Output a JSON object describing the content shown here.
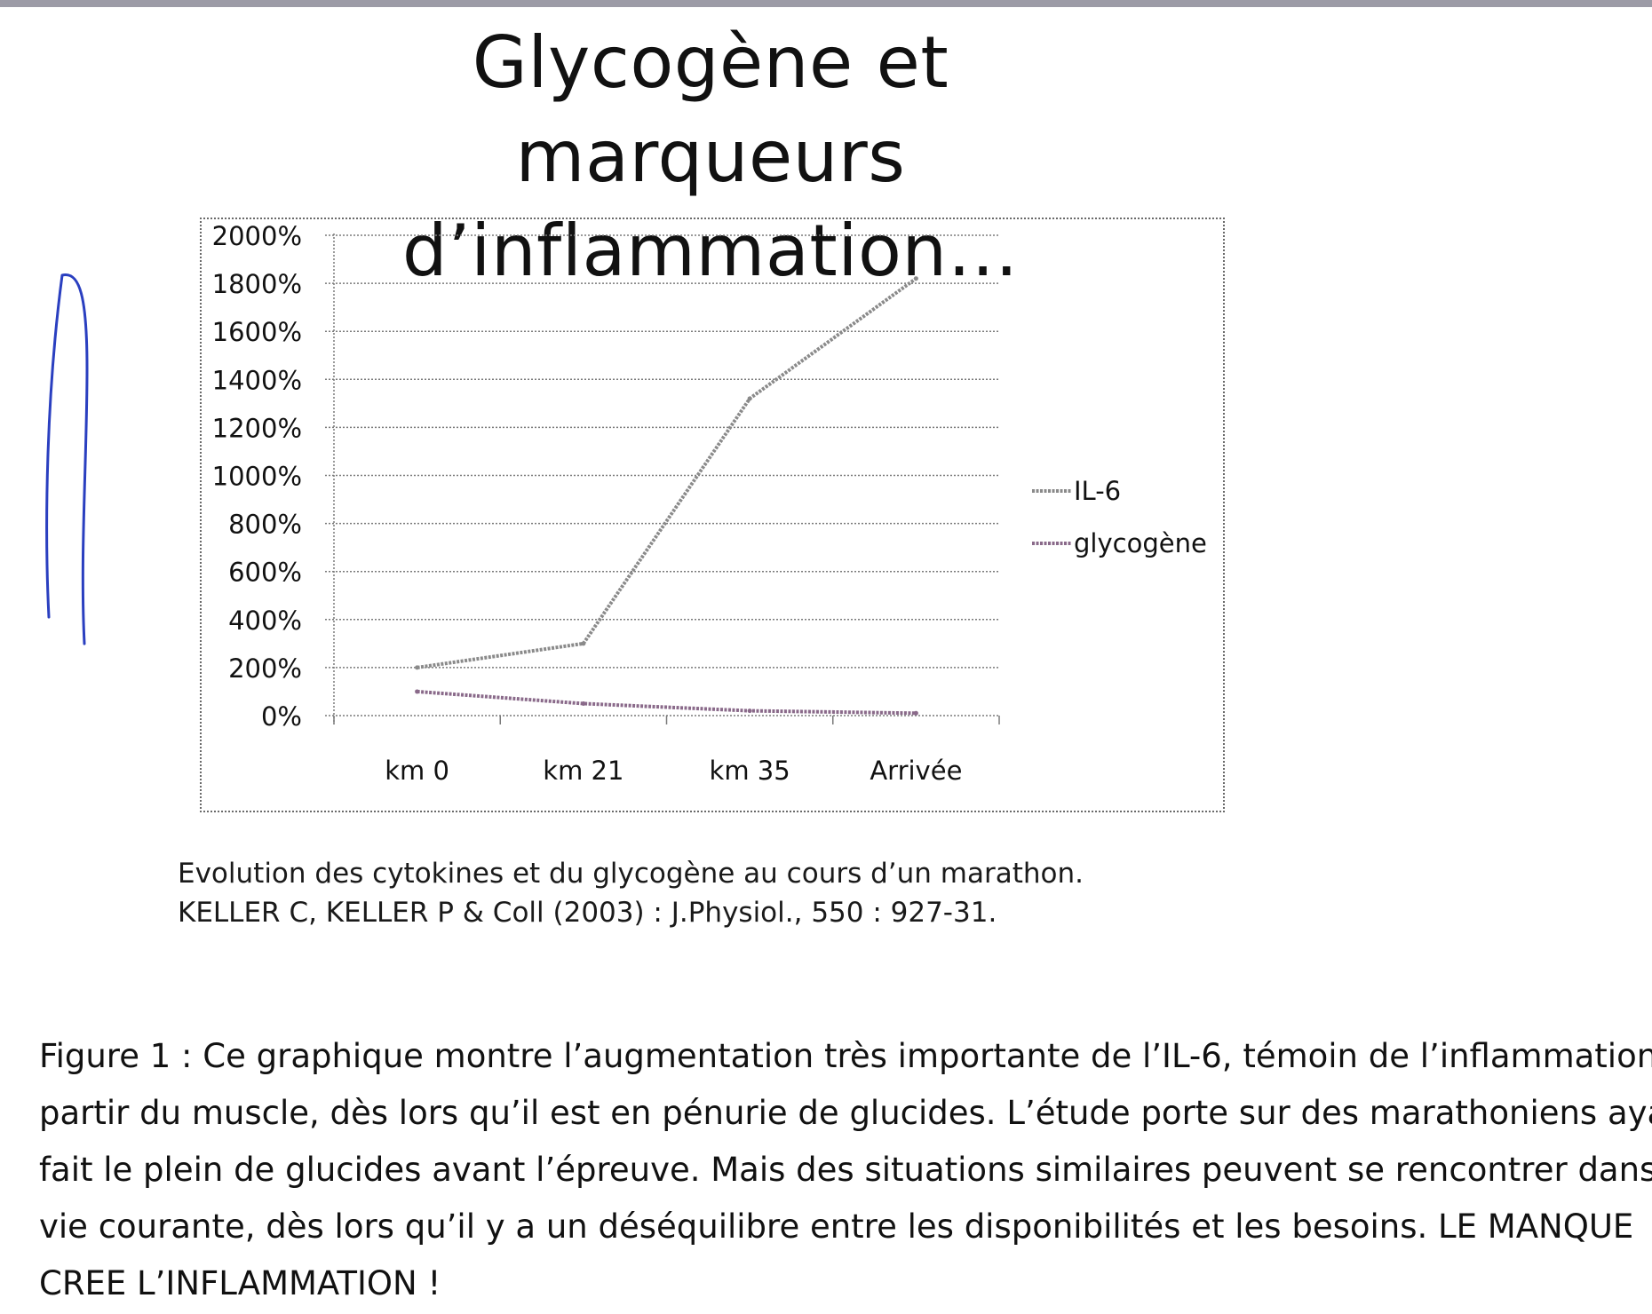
{
  "title_lines": [
    "Glycogène et marqueurs",
    "d’inflammation…"
  ],
  "chart_data": {
    "type": "line",
    "categories": [
      "km 0",
      "km 21",
      "km 35",
      "Arrivée"
    ],
    "series": [
      {
        "name": "IL-6",
        "values": [
          200,
          300,
          1320,
          1820
        ],
        "color": "#8a8a8a"
      },
      {
        "name": "glycogène",
        "values": [
          100,
          50,
          20,
          10
        ],
        "color": "#8a6a8a"
      }
    ],
    "y_ticks": [
      "0%",
      "200%",
      "400%",
      "600%",
      "800%",
      "1000%",
      "1200%",
      "1400%",
      "1600%",
      "1800%",
      "2000%"
    ],
    "ylim": [
      0,
      2000
    ],
    "y_unit": "%",
    "grid": true,
    "legend": "right"
  },
  "caption": {
    "line1": "Evolution des cytokines et du glycogène au cours d’un marathon.",
    "line2": "KELLER C, KELLER P & Coll (2003) : J.Physiol., 550 : 927-31."
  },
  "figure_text": [
    "Figure 1 : Ce graphique montre l’augmentation très importante de l’IL-6, témoin de l’inflammation",
    "partir du muscle, dès lors qu’il est en pénurie de glucides. L’étude porte sur des marathoniens aya",
    "fait le plein de glucides avant l’épreuve. Mais des situations similaires peuvent se rencontrer dans",
    "vie courante, dès lors qu’il y a un déséquilibre entre les disponibilités et les besoins. LE MANQUE",
    "CREE L’INFLAMMATION !"
  ],
  "colors": {
    "grid": "#7a7a7a",
    "scribble": "#2a3fc0",
    "top_band": "#9c9ba6"
  }
}
